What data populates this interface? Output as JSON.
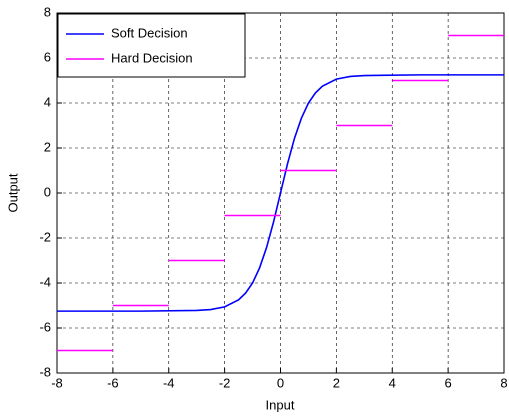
{
  "chart_data": {
    "type": "line",
    "xlabel": "Input",
    "ylabel": "Output",
    "xlim": [
      -8,
      8
    ],
    "xticks": [
      -8,
      -6,
      -4,
      -2,
      0,
      2,
      4,
      6,
      8
    ],
    "ylim": [
      -8,
      8
    ],
    "yticks": [
      -8,
      -6,
      -4,
      -2,
      0,
      2,
      4,
      6,
      8
    ],
    "grid": true,
    "legend": "upper-left",
    "series": [
      {
        "name": "Soft Decision",
        "color": "#0000ff",
        "x": [
          -8,
          -5,
          -3,
          -2.5,
          -2,
          -1.5,
          -1.25,
          -1,
          -0.75,
          -0.5,
          -0.25,
          0,
          0.25,
          0.5,
          0.75,
          1,
          1.25,
          1.5,
          2,
          2.5,
          3,
          5,
          8
        ],
        "values": [
          -5.25,
          -5.25,
          -5.22,
          -5.18,
          -5.06,
          -4.75,
          -4.45,
          -4.0,
          -3.33,
          -2.43,
          -1.29,
          0,
          1.29,
          2.43,
          3.33,
          4.0,
          4.45,
          4.75,
          5.06,
          5.18,
          5.22,
          5.25,
          5.25
        ]
      },
      {
        "name": "Hard Decision",
        "color": "#ff00ff",
        "x": [
          -8,
          -6,
          null,
          -6,
          -4,
          null,
          -4,
          -2,
          null,
          -2,
          0,
          null,
          0,
          2,
          null,
          2,
          4,
          null,
          4,
          6,
          null,
          6,
          8
        ],
        "values": [
          -7,
          -7,
          null,
          -5,
          -5,
          null,
          -3,
          -3,
          null,
          -1,
          -1,
          null,
          1,
          1,
          null,
          3,
          3,
          null,
          5,
          5,
          null,
          7,
          7
        ]
      }
    ]
  }
}
